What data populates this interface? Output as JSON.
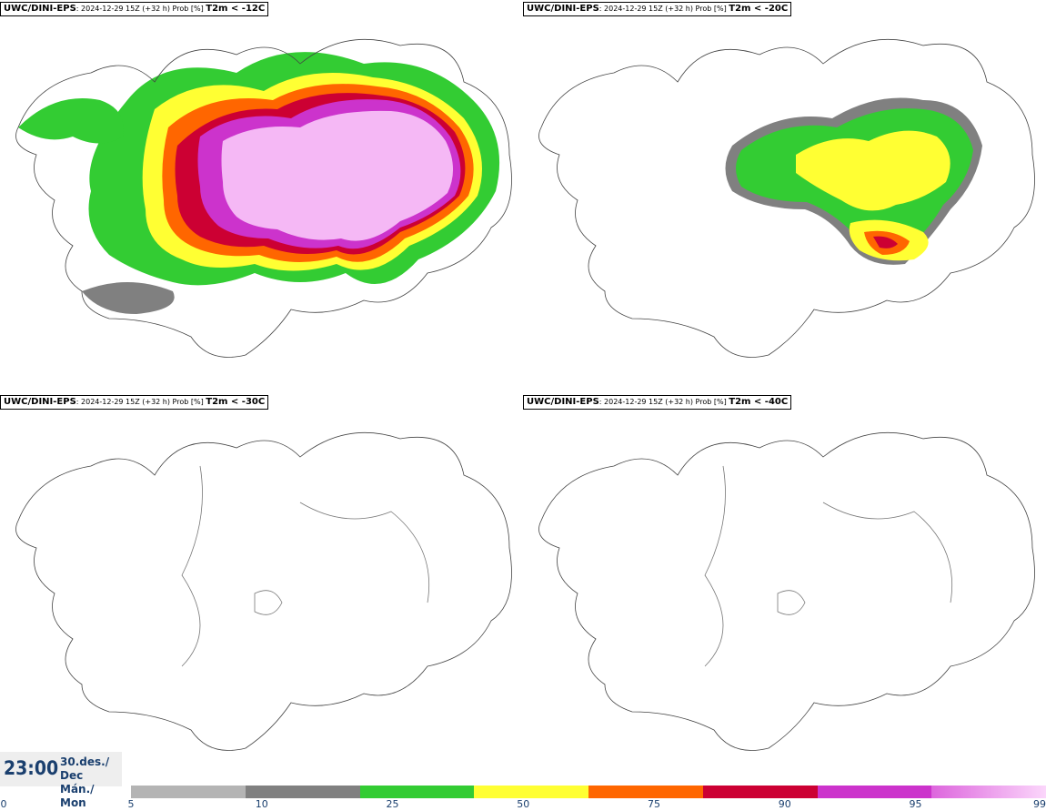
{
  "panels": [
    {
      "model": "UWC/DINI-EPS",
      "run": "2024-12-29 15Z (+32 h) Prob [%]",
      "field": "T2m < -12C"
    },
    {
      "model": "UWC/DINI-EPS",
      "run": "2024-12-29 15Z (+32 h) Prob [%]",
      "field": "T2m < -20C"
    },
    {
      "model": "UWC/DINI-EPS",
      "run": "2024-12-29 15Z (+32 h) Prob [%]",
      "field": "T2m < -30C"
    },
    {
      "model": "UWC/DINI-EPS",
      "run": "2024-12-29 15Z (+32 h) Prob [%]",
      "field": "T2m < -40C"
    }
  ],
  "valid_time": {
    "time": "23:00",
    "date_line": "30.des./ Dec",
    "day_line": "Mán./ Mon"
  },
  "colorbar": {
    "ticks": [
      "0",
      "5",
      "10",
      "25",
      "50",
      "75",
      "90",
      "95",
      "99"
    ],
    "colors": [
      "#b4b4b4",
      "#808080",
      "#33cc33",
      "#ffff33",
      "#ff6600",
      "#cc0033",
      "#cc33cc",
      "#f5b8f5"
    ]
  }
}
